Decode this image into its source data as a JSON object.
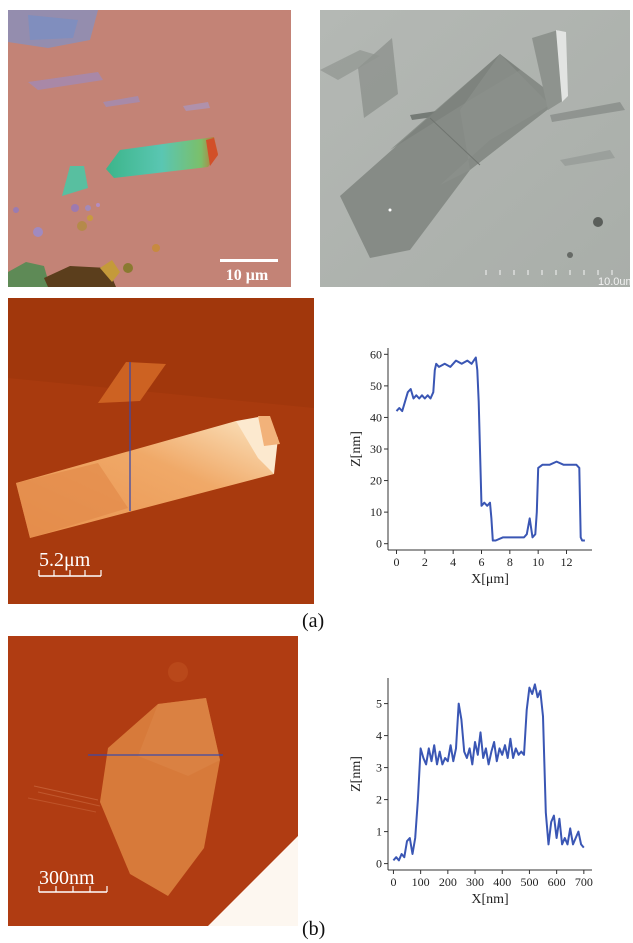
{
  "panels": {
    "optical": {
      "scale_label": "10 μm"
    },
    "sem": {
      "scale_label": "10.0um"
    },
    "afm_a": {
      "scale_label": "5.2μm"
    },
    "afm_b": {
      "scale_label": "300nm"
    }
  },
  "captions": {
    "a": "(a)",
    "b": "(b)"
  },
  "colors": {
    "line": "#3a56b4",
    "afm_bg": "#b83d12",
    "afm_flake": "#e8904e"
  },
  "chart_data": [
    {
      "type": "line",
      "xlabel": "X[μm]",
      "ylabel": "Z[nm]",
      "xlim": [
        -0.6,
        13.8
      ],
      "ylim": [
        -2,
        62
      ],
      "xticks": [
        0,
        2,
        4,
        6,
        8,
        10,
        12
      ],
      "yticks": [
        0,
        10,
        20,
        30,
        40,
        50,
        60
      ],
      "series": [
        {
          "x": [
            0,
            0.2,
            0.4,
            0.6,
            0.8,
            1.0,
            1.2,
            1.4,
            1.6,
            1.8,
            2.0,
            2.2,
            2.4,
            2.6,
            2.7,
            2.8,
            3.0,
            3.4,
            3.8,
            4.2,
            4.6,
            5.0,
            5.3,
            5.6,
            5.7,
            5.8,
            6.0,
            6.2,
            6.4,
            6.6,
            6.7,
            6.8,
            7.0,
            7.5,
            8.0,
            8.5,
            9.0,
            9.2,
            9.4,
            9.6,
            9.8,
            9.9,
            10.0,
            10.3,
            10.8,
            11.3,
            11.8,
            12.3,
            12.7,
            12.9,
            13.0,
            13.1,
            13.3
          ],
          "y": [
            42,
            43,
            42,
            45,
            48,
            49,
            46,
            47,
            46,
            47,
            46,
            47,
            46,
            48,
            55,
            57,
            56,
            57,
            56,
            58,
            57,
            58,
            57,
            59,
            55,
            45,
            12,
            13,
            12,
            13,
            8,
            1,
            1,
            2,
            2,
            2,
            2,
            3,
            8,
            2,
            3,
            10,
            24,
            25,
            25,
            26,
            25,
            25,
            25,
            24,
            2,
            1,
            1
          ]
        }
      ]
    },
    {
      "type": "line",
      "xlabel": "X[nm]",
      "ylabel": "Z[nm]",
      "xlim": [
        -20,
        730
      ],
      "ylim": [
        -0.2,
        5.8
      ],
      "xticks": [
        0,
        100,
        200,
        300,
        400,
        500,
        600,
        700
      ],
      "yticks": [
        0,
        1,
        2,
        3,
        4,
        5
      ],
      "series": [
        {
          "x": [
            0,
            10,
            20,
            30,
            40,
            50,
            60,
            70,
            80,
            90,
            100,
            110,
            120,
            130,
            140,
            150,
            160,
            170,
            180,
            190,
            200,
            210,
            220,
            230,
            240,
            250,
            260,
            270,
            280,
            290,
            300,
            310,
            320,
            330,
            340,
            350,
            360,
            370,
            380,
            390,
            400,
            410,
            420,
            430,
            440,
            450,
            460,
            470,
            480,
            490,
            500,
            510,
            520,
            530,
            540,
            550,
            560,
            570,
            580,
            590,
            600,
            610,
            620,
            630,
            640,
            650,
            660,
            670,
            680,
            690,
            700
          ],
          "y": [
            0.1,
            0.2,
            0.1,
            0.3,
            0.2,
            0.7,
            0.8,
            0.3,
            0.8,
            2.0,
            3.6,
            3.3,
            3.1,
            3.6,
            3.2,
            3.7,
            3.1,
            3.5,
            3.1,
            3.3,
            3.2,
            3.7,
            3.2,
            3.6,
            5.0,
            4.5,
            3.5,
            3.3,
            3.6,
            3.1,
            3.8,
            3.4,
            4.1,
            3.3,
            3.6,
            3.1,
            3.5,
            3.8,
            3.2,
            3.6,
            3.4,
            3.7,
            3.3,
            3.9,
            3.3,
            3.6,
            3.4,
            3.5,
            3.4,
            4.8,
            5.5,
            5.3,
            5.6,
            5.2,
            5.4,
            4.6,
            1.6,
            0.6,
            1.3,
            1.5,
            0.8,
            1.4,
            0.6,
            0.8,
            0.6,
            1.1,
            0.6,
            0.8,
            1.0,
            0.6,
            0.5
          ]
        }
      ]
    }
  ]
}
